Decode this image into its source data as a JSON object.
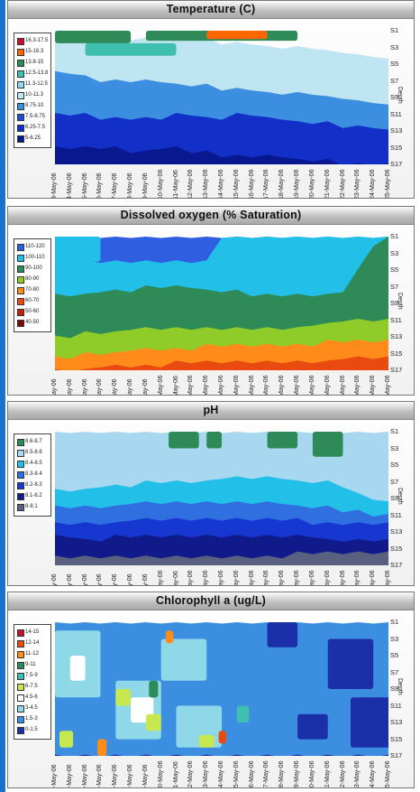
{
  "chart_data": [
    {
      "type": "heatmap",
      "title": "Temperature (C)",
      "xlabel": "",
      "ylabel": "Depth",
      "x_tick_labels": [
        "3-May-06",
        "4-May-06",
        "5-May-06",
        "6-May-06",
        "7-May-06",
        "8-May-06",
        "9-May-06",
        "10-May-06",
        "11-May-06",
        "12-May-06",
        "13-May-06",
        "14-May-06",
        "15-May-06",
        "16-May-06",
        "17-May-06",
        "18-May-06",
        "19-May-06",
        "20-May-06",
        "21-May-06",
        "22-May-06",
        "23-May-06",
        "24-May-06",
        "25-May-06"
      ],
      "y_tick_labels": [
        "S1",
        "S3",
        "S5",
        "S7",
        "S9",
        "S11",
        "S13",
        "S15",
        "S17"
      ],
      "legend": [
        {
          "label": "16.3-17.5",
          "color": "#c8102e"
        },
        {
          "label": "15-16.3",
          "color": "#ff6600"
        },
        {
          "label": "13.8-15",
          "color": "#2e8b57"
        },
        {
          "label": "12.5-13.8",
          "color": "#3fbfb0"
        },
        {
          "label": "11.3-12.5",
          "color": "#8fd8e8"
        },
        {
          "label": "10-11.3",
          "color": "#bfe4f2"
        },
        {
          "label": "8.75-10",
          "color": "#3c8fe0"
        },
        {
          "label": "7.5-8.75",
          "color": "#1c4fd6"
        },
        {
          "label": "6.25-7.5",
          "color": "#1230c8"
        },
        {
          "label": "5-6.25",
          "color": "#0a1890"
        }
      ],
      "layers": [
        {
          "color": "#bfe4f2",
          "depth_start": [
            1,
            1,
            1.5,
            2,
            2,
            2,
            2,
            2,
            2,
            2,
            2,
            2.5,
            2.5,
            2.5,
            3,
            3,
            3,
            3,
            3.5,
            3.5,
            4,
            4,
            4.5
          ]
        },
        {
          "color": "#3c8fe0",
          "depth_start": [
            6,
            6,
            6.5,
            7,
            7,
            7,
            7,
            7,
            7.5,
            7.5,
            7.5,
            8,
            8,
            8,
            8.5,
            8.5,
            8.5,
            8.5,
            9,
            9,
            9.5,
            9.5,
            10
          ]
        },
        {
          "color": "#1230c8",
          "depth_start": [
            11,
            11,
            11,
            11.5,
            11.5,
            11.5,
            11.5,
            11.5,
            11,
            11,
            11.5,
            11.5,
            11,
            11,
            11.5,
            11.5,
            12,
            12,
            12,
            12.5,
            12.5,
            12.5,
            13
          ]
        },
        {
          "color": "#0a1890",
          "depth_start": [
            15,
            15,
            15,
            15,
            15,
            15.5,
            15.5,
            15,
            15,
            15.5,
            15.5,
            16,
            16,
            16,
            16,
            16,
            16.5,
            16.5,
            16.5,
            17,
            17,
            17,
            17
          ]
        }
      ],
      "patches": [
        {
          "color": "#2e8b57",
          "x": [
            0,
            5
          ],
          "depth": [
            1,
            2.5
          ]
        },
        {
          "color": "#2e8b57",
          "x": [
            6,
            16
          ],
          "depth": [
            1,
            2.2
          ]
        },
        {
          "color": "#ff6600",
          "x": [
            10,
            14
          ],
          "depth": [
            1,
            2
          ]
        },
        {
          "color": "#3fbfb0",
          "x": [
            2,
            8
          ],
          "depth": [
            2.5,
            4
          ]
        }
      ]
    },
    {
      "type": "heatmap",
      "title": "Dissolved oxygen (% Saturation)",
      "xlabel": "",
      "ylabel": "Depth",
      "x_tick_labels": [
        "3-May-06",
        "4-May-06",
        "5-May-06",
        "6-May-06",
        "7-May-06",
        "8-May-06",
        "9-May-06",
        "10-May-06",
        "11-May-06",
        "12-May-06",
        "13-May-06",
        "14-May-06",
        "15-May-06",
        "16-May-06",
        "17-May-06",
        "18-May-06",
        "19-May-06",
        "20-May-06",
        "21-May-06",
        "22-May-06",
        "23-May-06",
        "24-May-06",
        "25-May-06"
      ],
      "y_tick_labels": [
        "S1",
        "S3",
        "S5",
        "S7",
        "S9",
        "S11",
        "S13",
        "S15",
        "S17"
      ],
      "legend": [
        {
          "label": "110-120",
          "color": "#2f5fe0"
        },
        {
          "label": "100-110",
          "color": "#22c0e8"
        },
        {
          "label": "90-100",
          "color": "#2e8b57"
        },
        {
          "label": "80-90",
          "color": "#8fcc2a"
        },
        {
          "label": "70-80",
          "color": "#ff8c1a"
        },
        {
          "label": "60-70",
          "color": "#e84a10"
        },
        {
          "label": "50-60",
          "color": "#c81e10"
        },
        {
          "label": "40-50",
          "color": "#7a0a0a"
        }
      ],
      "layers": [
        {
          "color": "#2f5fe0",
          "depth_start": [
            1,
            1,
            1,
            1,
            1,
            1,
            1,
            1,
            1,
            1,
            1,
            1,
            1,
            1,
            1,
            1,
            1,
            1,
            1,
            1,
            1,
            1,
            1
          ]
        },
        {
          "color": "#22c0e8",
          "depth_start": [
            1,
            1,
            4,
            4,
            4,
            4,
            4,
            4,
            4,
            4,
            4,
            1,
            1,
            1,
            1,
            1,
            1,
            1,
            1,
            1,
            1,
            1,
            1
          ]
        },
        {
          "color": "#2e8b57",
          "depth_start": [
            8,
            8,
            8,
            7.5,
            7.5,
            7.5,
            7,
            7,
            7,
            7,
            7.5,
            7.5,
            7.5,
            8,
            8,
            8,
            8,
            8,
            8,
            7.5,
            5,
            2,
            1
          ]
        },
        {
          "color": "#8fcc2a",
          "depth_start": [
            13,
            13,
            12.5,
            12.5,
            12.5,
            12,
            12,
            12,
            12,
            12,
            12,
            12,
            12,
            12,
            12,
            12,
            12,
            11.5,
            11.5,
            11,
            11,
            11,
            11
          ]
        },
        {
          "color": "#ff8c1a",
          "depth_start": [
            15.5,
            15.5,
            15,
            15,
            15,
            14.5,
            14.5,
            14.5,
            14.5,
            14.5,
            14,
            14,
            14,
            14,
            14,
            14,
            14,
            14,
            13.5,
            13.5,
            13.5,
            13.5,
            13.5
          ]
        },
        {
          "color": "#e84a10",
          "depth_start": [
            17,
            17,
            17,
            16.5,
            16.5,
            16.5,
            16.5,
            16.5,
            16,
            16,
            16,
            16,
            16,
            16,
            16,
            16,
            16,
            16,
            16,
            15.5,
            15.5,
            15.5,
            15.5
          ]
        }
      ],
      "patches": [
        {
          "color": "#22c0e8",
          "x": [
            0,
            3
          ],
          "depth": [
            1,
            4
          ]
        }
      ]
    },
    {
      "type": "heatmap",
      "title": "pH",
      "xlabel": "",
      "ylabel": "Depth",
      "x_tick_labels": [
        "3-May-06",
        "4-May-06",
        "5-May-06",
        "6-May-06",
        "7-May-06",
        "8-May-06",
        "9-May-06",
        "10-May-06",
        "11-May-06",
        "12-May-06",
        "13-May-06",
        "14-May-06",
        "15-May-06",
        "16-May-06",
        "17-May-06",
        "18-May-06",
        "19-May-06",
        "20-May-06",
        "21-May-06",
        "22-May-06",
        "23-May-06",
        "24-May-06",
        "25-May-06"
      ],
      "y_tick_labels": [
        "S1",
        "S3",
        "S5",
        "S7",
        "S9",
        "S11",
        "S13",
        "S15",
        "S17"
      ],
      "legend": [
        {
          "label": "8.6-8.7",
          "color": "#2e8b57"
        },
        {
          "label": "8.5-8.6",
          "color": "#a8d8f0"
        },
        {
          "label": "8.4-8.5",
          "color": "#22c0e8"
        },
        {
          "label": "8.3-8.4",
          "color": "#2f6fe0"
        },
        {
          "label": "8.2-8.3",
          "color": "#1638d0"
        },
        {
          "label": "8.1-8.2",
          "color": "#101a8a"
        },
        {
          "label": "8-8.1",
          "color": "#5a6080"
        }
      ],
      "layers": [
        {
          "color": "#a8d8f0",
          "depth_start": [
            1,
            1,
            1,
            1,
            1,
            1,
            1,
            1,
            1,
            1,
            1,
            1,
            1,
            1,
            1,
            1,
            1,
            1,
            1,
            1,
            1,
            1,
            1
          ]
        },
        {
          "color": "#22c0e8",
          "depth_start": [
            8,
            8,
            8,
            7.5,
            7.5,
            7.5,
            7,
            7,
            7,
            7,
            7,
            6.5,
            6.5,
            6.5,
            6.5,
            6.5,
            7,
            7,
            7,
            7.5,
            8.5,
            9,
            9.5
          ]
        },
        {
          "color": "#2f6fe0",
          "depth_start": [
            10,
            10,
            10,
            10,
            10,
            9.5,
            9.5,
            9.5,
            9.5,
            9.5,
            9.5,
            9.5,
            9.5,
            9.5,
            9.5,
            9.5,
            10,
            10,
            10,
            10.5,
            10.5,
            11,
            11
          ]
        },
        {
          "color": "#1638d0",
          "depth_start": [
            12,
            12,
            12,
            12,
            12,
            11.5,
            11.5,
            11.5,
            11.5,
            11.5,
            11.5,
            11.5,
            11.5,
            11.5,
            11.5,
            11.5,
            11.5,
            12,
            12,
            12,
            12,
            12,
            12
          ]
        },
        {
          "color": "#101a8a",
          "depth_start": [
            13.5,
            13.5,
            14,
            14,
            13.5,
            13.5,
            13.5,
            13.5,
            13.5,
            13.5,
            13.5,
            13.5,
            13.5,
            13.5,
            13.5,
            13.5,
            13.5,
            13.5,
            14,
            14,
            14,
            14,
            14
          ]
        },
        {
          "color": "#5a6080",
          "depth_start": [
            16,
            16,
            16,
            16,
            16,
            16,
            16,
            16,
            16,
            16,
            16,
            16,
            16,
            16,
            16,
            16,
            15.5,
            15.5,
            15.5,
            15.5,
            15.5,
            15.5,
            15.5
          ]
        }
      ],
      "patches": [
        {
          "color": "#2e8b57",
          "x": [
            7.5,
            9.5
          ],
          "depth": [
            1,
            3
          ]
        },
        {
          "color": "#2e8b57",
          "x": [
            10,
            11
          ],
          "depth": [
            1,
            3
          ]
        },
        {
          "color": "#2e8b57",
          "x": [
            14,
            16
          ],
          "depth": [
            1,
            3
          ]
        },
        {
          "color": "#2e8b57",
          "x": [
            17,
            19
          ],
          "depth": [
            1,
            4
          ]
        }
      ]
    },
    {
      "type": "heatmap",
      "title": "Chlorophyll a (ug/L)",
      "xlabel": "",
      "ylabel": "Depth",
      "x_tick_labels": [
        "3-May-06",
        "4-May-06",
        "5-May-06",
        "6-May-06",
        "7-May-06",
        "8-May-06",
        "9-May-06",
        "10-May-06",
        "11-May-06",
        "12-May-06",
        "13-May-06",
        "14-May-06",
        "15-May-06",
        "16-May-06",
        "17-May-06",
        "18-May-06",
        "19-May-06",
        "20-May-06",
        "21-May-06",
        "22-May-06",
        "23-May-06",
        "24-May-06",
        "25-May-06"
      ],
      "y_tick_labels": [
        "S1",
        "S3",
        "S5",
        "S7",
        "S9",
        "S11",
        "S13",
        "S15",
        "S17"
      ],
      "legend": [
        {
          "label": "14-15",
          "color": "#c8102e"
        },
        {
          "label": "12-14",
          "color": "#e84a10"
        },
        {
          "label": "11-12",
          "color": "#ff8c1a"
        },
        {
          "label": "9-11",
          "color": "#2e8b57"
        },
        {
          "label": "7.5-9",
          "color": "#3fbfb0"
        },
        {
          "label": "6-7.5",
          "color": "#c8e850"
        },
        {
          "label": "4.5-6",
          "color": "#ffffff"
        },
        {
          "label": "3-4.5",
          "color": "#8fd8e8"
        },
        {
          "label": "1.5-3",
          "color": "#3c8fe0"
        },
        {
          "label": "0-1.5",
          "color": "#1a2fa8"
        }
      ],
      "layers": [
        {
          "color": "#3c8fe0",
          "depth_start": [
            1,
            1,
            1,
            1,
            1,
            1,
            1,
            1,
            1,
            1,
            1,
            1,
            1,
            1,
            1,
            1,
            1,
            1,
            1,
            1,
            1,
            1,
            1
          ]
        },
        {
          "color": "#1a2fa8",
          "depth_start": [
            17,
            17,
            17,
            17,
            17,
            17,
            17,
            17,
            17,
            17,
            17,
            17,
            17,
            17,
            17,
            17,
            17,
            17,
            17,
            17,
            17,
            17,
            17
          ]
        }
      ],
      "patches": [
        {
          "color": "#1a2fa8",
          "x": [
            14,
            16
          ],
          "depth": [
            1,
            4
          ]
        },
        {
          "color": "#1a2fa8",
          "x": [
            18,
            21
          ],
          "depth": [
            3,
            9
          ]
        },
        {
          "color": "#1a2fa8",
          "x": [
            19.5,
            22.5
          ],
          "depth": [
            10,
            16
          ]
        },
        {
          "color": "#1a2fa8",
          "x": [
            16,
            18
          ],
          "depth": [
            12,
            15
          ]
        },
        {
          "color": "#8fd8e8",
          "x": [
            0,
            3
          ],
          "depth": [
            2,
            10
          ]
        },
        {
          "color": "#8fd8e8",
          "x": [
            4,
            7
          ],
          "depth": [
            8,
            15
          ]
        },
        {
          "color": "#8fd8e8",
          "x": [
            7,
            10
          ],
          "depth": [
            3,
            8
          ]
        },
        {
          "color": "#8fd8e8",
          "x": [
            8,
            11
          ],
          "depth": [
            11,
            16
          ]
        },
        {
          "color": "#ffffff",
          "x": [
            1,
            2
          ],
          "depth": [
            5,
            8
          ]
        },
        {
          "color": "#ffffff",
          "x": [
            5,
            6.5
          ],
          "depth": [
            10,
            13
          ]
        },
        {
          "color": "#c8e850",
          "x": [
            0.3,
            1.2
          ],
          "depth": [
            14,
            16
          ]
        },
        {
          "color": "#c8e850",
          "x": [
            4,
            5
          ],
          "depth": [
            9,
            11
          ]
        },
        {
          "color": "#c8e850",
          "x": [
            6,
            7
          ],
          "depth": [
            12,
            14
          ]
        },
        {
          "color": "#c8e850",
          "x": [
            9.5,
            10.5
          ],
          "depth": [
            14.5,
            16
          ]
        },
        {
          "color": "#2e8b57",
          "x": [
            6.2,
            6.8
          ],
          "depth": [
            8,
            10
          ]
        },
        {
          "color": "#3fbfb0",
          "x": [
            12,
            12.8
          ],
          "depth": [
            11,
            13
          ]
        },
        {
          "color": "#ff8c1a",
          "x": [
            2.8,
            3.4
          ],
          "depth": [
            15,
            17
          ]
        },
        {
          "color": "#ff8c1a",
          "x": [
            7.3,
            7.8
          ],
          "depth": [
            2,
            3.5
          ]
        },
        {
          "color": "#e84a10",
          "x": [
            10.8,
            11.3
          ],
          "depth": [
            14,
            15.5
          ]
        }
      ]
    }
  ]
}
